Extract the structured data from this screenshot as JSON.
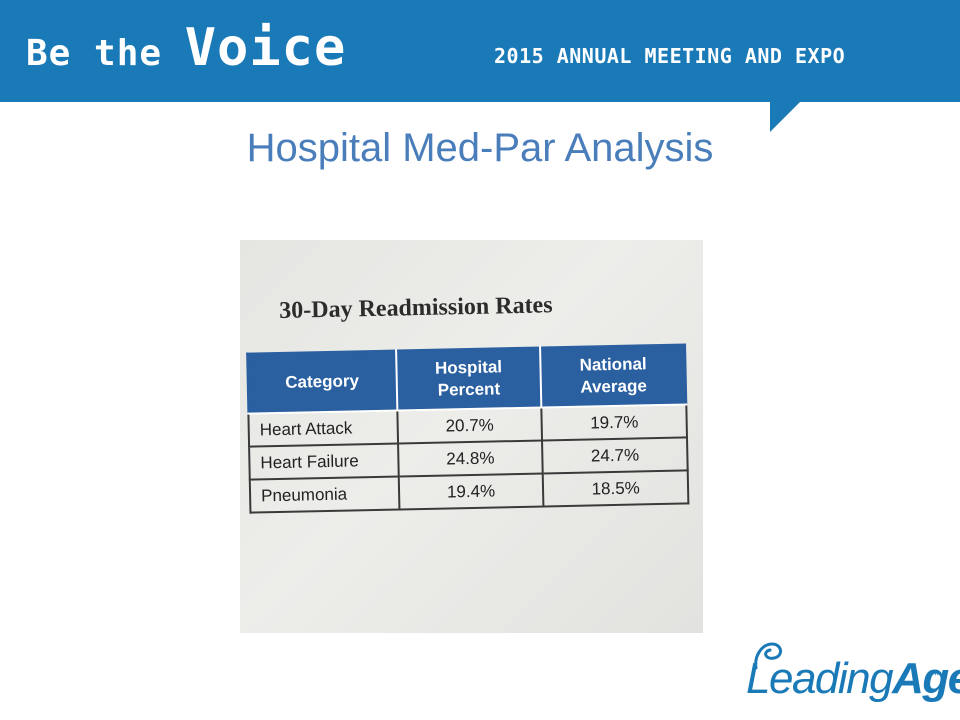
{
  "header": {
    "brand_small_1": "Be the ",
    "brand_big": "Voice",
    "event": "2015 ANNUAL MEETING AND EXPO",
    "color": "#1a7ab8"
  },
  "slide": {
    "title": "Hospital Med-Par Analysis"
  },
  "table": {
    "heading": "30-Day Readmission Rates",
    "columns": [
      "Category",
      "Hospital Percent",
      "National Average"
    ],
    "column_lines": [
      [
        "Category"
      ],
      [
        "Hospital",
        "Percent"
      ],
      [
        "National",
        "Average"
      ]
    ],
    "rows": [
      {
        "category": "Heart Attack",
        "hospital": "20.7%",
        "national": "19.7%"
      },
      {
        "category": "Heart Failure",
        "hospital": "24.8%",
        "national": "24.7%"
      },
      {
        "category": "Pneumonia",
        "hospital": "19.4%",
        "national": "18.5%"
      }
    ],
    "header_color": "#2a5fa0"
  },
  "logo": {
    "text_regular": "Leading",
    "text_bold": "Age",
    "tm": "™"
  }
}
